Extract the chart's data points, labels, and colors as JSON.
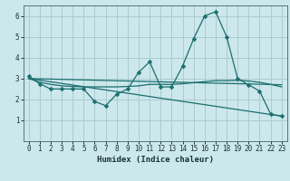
{
  "xlabel": "Humidex (Indice chaleur)",
  "bg_color": "#cce8ec",
  "grid_color": "#aacccc",
  "line_color": "#1a6e6e",
  "xlim": [
    -0.5,
    23.5
  ],
  "ylim": [
    0,
    6.5
  ],
  "xticks": [
    0,
    1,
    2,
    3,
    4,
    5,
    6,
    7,
    8,
    9,
    10,
    11,
    12,
    13,
    14,
    15,
    16,
    17,
    18,
    19,
    20,
    21,
    22,
    23
  ],
  "yticks": [
    1,
    2,
    3,
    4,
    5,
    6
  ],
  "line1_x": [
    0,
    1,
    2,
    3,
    4,
    5,
    6,
    7,
    8,
    9,
    10,
    11,
    12,
    13,
    14,
    15,
    16,
    17,
    18,
    19,
    20,
    21,
    22,
    23
  ],
  "line1_y": [
    3.1,
    2.75,
    2.5,
    2.5,
    2.5,
    2.5,
    1.9,
    1.7,
    2.25,
    2.5,
    3.3,
    3.8,
    2.6,
    2.6,
    3.6,
    4.9,
    6.0,
    6.2,
    5.0,
    3.0,
    2.7,
    2.4,
    1.3,
    1.2
  ],
  "line2_x": [
    0,
    1,
    2,
    3,
    4,
    5,
    6,
    7,
    8,
    9,
    10,
    11,
    12,
    13,
    14,
    15,
    16,
    17,
    18,
    19,
    20,
    21,
    22,
    23
  ],
  "line2_y": [
    3.0,
    2.82,
    2.72,
    2.65,
    2.62,
    2.6,
    2.6,
    2.6,
    2.6,
    2.62,
    2.65,
    2.72,
    2.72,
    2.72,
    2.75,
    2.8,
    2.85,
    2.9,
    2.9,
    2.92,
    2.88,
    2.82,
    2.72,
    2.6
  ],
  "line3_x": [
    0,
    23
  ],
  "line3_y": [
    3.0,
    2.7
  ],
  "line4_x": [
    0,
    23
  ],
  "line4_y": [
    3.0,
    1.2
  ]
}
